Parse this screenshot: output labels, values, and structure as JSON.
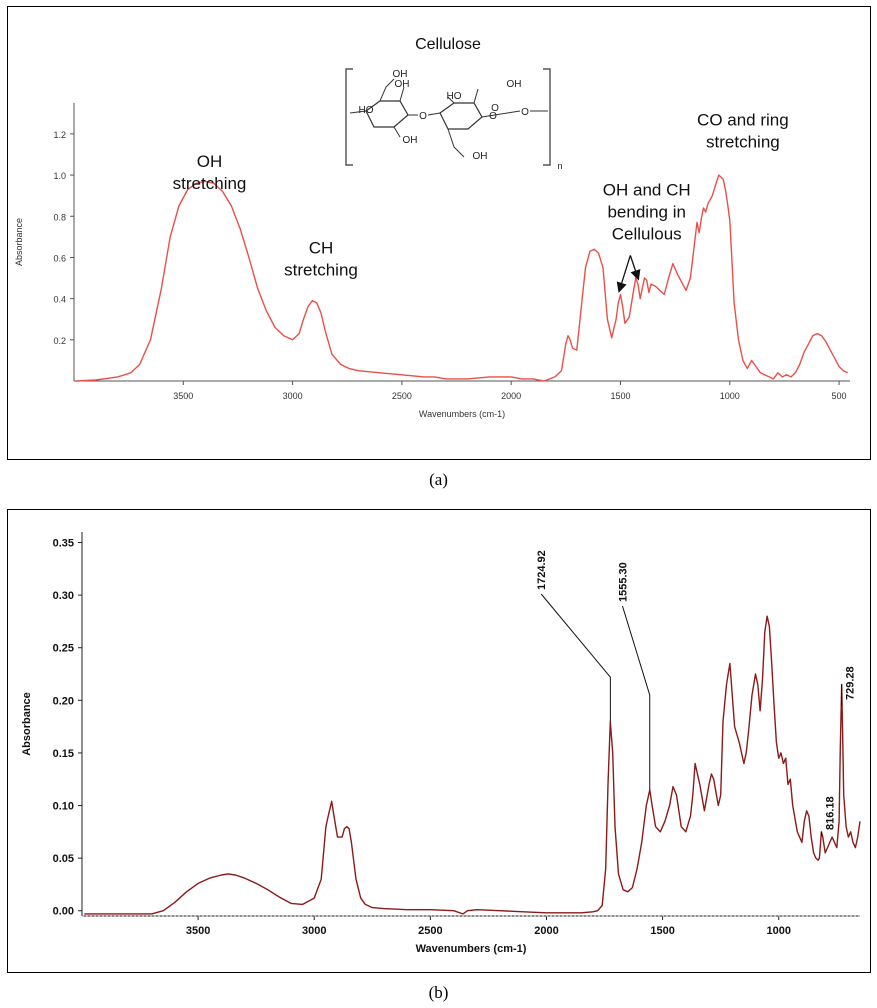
{
  "captions": {
    "a": "(a)",
    "b": "(b)"
  },
  "chart_data": [
    {
      "type": "line",
      "panel": "a",
      "xlabel": "Wavenumbers (cm-1)",
      "ylabel": "Absorbance",
      "xlim": [
        4000,
        450
      ],
      "ylim": [
        0,
        1.35
      ],
      "x_reversed": true,
      "xticks": [
        3500,
        3000,
        2500,
        2000,
        1500,
        1000,
        500
      ],
      "yticks": [
        0.2,
        0.4,
        0.6,
        0.8,
        1.0,
        1.2
      ],
      "ytick_labels": [
        "0.2",
        "0.4",
        "0.6",
        "0.8",
        "1.0",
        "1.2"
      ],
      "line_color": "#e8504a",
      "series": [
        {
          "x": [
            3990,
            3900,
            3800,
            3740,
            3700,
            3650,
            3600,
            3560,
            3520,
            3480,
            3440,
            3400,
            3360,
            3320,
            3280,
            3240,
            3200,
            3160,
            3120,
            3080,
            3040,
            3000,
            2970,
            2950,
            2930,
            2910,
            2890,
            2870,
            2850,
            2820,
            2780,
            2740,
            2700,
            2600,
            2500,
            2400,
            2350,
            2300,
            2200,
            2100,
            2000,
            1950,
            1900,
            1850,
            1800,
            1770,
            1750,
            1740,
            1730,
            1720,
            1700,
            1680,
            1660,
            1640,
            1620,
            1600,
            1580,
            1560,
            1540,
            1520,
            1510,
            1500,
            1490,
            1480,
            1460,
            1440,
            1430,
            1420,
            1410,
            1400,
            1390,
            1380,
            1370,
            1360,
            1340,
            1320,
            1300,
            1280,
            1260,
            1240,
            1220,
            1200,
            1180,
            1160,
            1150,
            1140,
            1130,
            1120,
            1110,
            1100,
            1080,
            1060,
            1050,
            1040,
            1030,
            1020,
            1010,
            1000,
            990,
            980,
            960,
            940,
            920,
            900,
            880,
            860,
            840,
            820,
            800,
            780,
            760,
            740,
            720,
            700,
            680,
            660,
            640,
            620,
            600,
            580,
            560,
            540,
            520,
            500,
            480,
            460
          ],
          "y": [
            0.0,
            0.005,
            0.02,
            0.04,
            0.08,
            0.2,
            0.45,
            0.7,
            0.85,
            0.93,
            0.96,
            0.97,
            0.96,
            0.92,
            0.85,
            0.74,
            0.6,
            0.45,
            0.34,
            0.26,
            0.22,
            0.2,
            0.23,
            0.3,
            0.36,
            0.39,
            0.38,
            0.33,
            0.24,
            0.13,
            0.08,
            0.06,
            0.05,
            0.04,
            0.03,
            0.02,
            0.02,
            0.01,
            0.01,
            0.02,
            0.02,
            0.01,
            0.01,
            0.0,
            0.02,
            0.05,
            0.18,
            0.22,
            0.2,
            0.16,
            0.15,
            0.35,
            0.55,
            0.63,
            0.64,
            0.62,
            0.55,
            0.3,
            0.21,
            0.3,
            0.38,
            0.42,
            0.36,
            0.28,
            0.31,
            0.44,
            0.5,
            0.47,
            0.4,
            0.45,
            0.5,
            0.49,
            0.43,
            0.47,
            0.46,
            0.44,
            0.42,
            0.5,
            0.57,
            0.52,
            0.48,
            0.44,
            0.5,
            0.68,
            0.77,
            0.72,
            0.79,
            0.84,
            0.82,
            0.86,
            0.9,
            0.97,
            1.0,
            0.99,
            0.98,
            0.93,
            0.86,
            0.78,
            0.58,
            0.38,
            0.2,
            0.1,
            0.06,
            0.1,
            0.07,
            0.04,
            0.03,
            0.02,
            0.01,
            0.04,
            0.02,
            0.03,
            0.02,
            0.04,
            0.08,
            0.14,
            0.18,
            0.22,
            0.23,
            0.22,
            0.19,
            0.15,
            0.11,
            0.07,
            0.05,
            0.04
          ]
        }
      ],
      "annotations": [
        {
          "lines": [
            "OH",
            "stretching"
          ],
          "x": 3380,
          "y": 1.04
        },
        {
          "lines": [
            "CH",
            "stretching"
          ],
          "x": 2870,
          "y": 0.62
        },
        {
          "lines": [
            "OH and CH",
            "bending in",
            "Cellulous"
          ],
          "x": 1380,
          "y": 0.9
        },
        {
          "lines": [
            "CO and ring",
            "stretching"
          ],
          "x": 940,
          "y": 1.24
        }
      ],
      "arrows": [
        {
          "from_x": 1455,
          "from_y": 0.61,
          "to_x": 1505,
          "to_y": 0.44
        },
        {
          "from_x": 1455,
          "from_y": 0.61,
          "to_x": 1420,
          "to_y": 0.5
        }
      ],
      "structure": {
        "title": "Cellulose",
        "labels": [
          "OH",
          "OH",
          "HO",
          "OH",
          "HO",
          "OH",
          "OH",
          "O",
          "O",
          "O",
          "O",
          "n"
        ]
      }
    },
    {
      "type": "line",
      "panel": "b",
      "xlabel": "Wavenumbers (cm-1)",
      "ylabel": "Absorbance",
      "xlim": [
        4000,
        650
      ],
      "ylim": [
        -0.005,
        0.36
      ],
      "x_reversed": true,
      "xticks": [
        3500,
        3000,
        2500,
        2000,
        1500,
        1000
      ],
      "yticks": [
        0.0,
        0.05,
        0.1,
        0.15,
        0.2,
        0.25,
        0.3,
        0.35
      ],
      "ytick_labels": [
        "0.00",
        "0.05",
        "0.10",
        "0.15",
        "0.20",
        "0.25",
        "0.30",
        "0.35"
      ],
      "line_color": "#8b1a1a",
      "series": [
        {
          "x": [
            3990,
            3900,
            3800,
            3700,
            3650,
            3600,
            3550,
            3500,
            3450,
            3400,
            3370,
            3340,
            3300,
            3250,
            3200,
            3150,
            3100,
            3050,
            3000,
            2970,
            2950,
            2940,
            2925,
            2915,
            2900,
            2880,
            2870,
            2860,
            2850,
            2840,
            2820,
            2800,
            2780,
            2750,
            2700,
            2600,
            2500,
            2400,
            2360,
            2340,
            2300,
            2200,
            2100,
            2000,
            1900,
            1850,
            1800,
            1780,
            1760,
            1745,
            1735,
            1725,
            1715,
            1705,
            1690,
            1670,
            1650,
            1630,
            1610,
            1590,
            1570,
            1555,
            1545,
            1530,
            1510,
            1490,
            1470,
            1455,
            1440,
            1420,
            1400,
            1380,
            1370,
            1360,
            1340,
            1320,
            1300,
            1290,
            1280,
            1260,
            1250,
            1240,
            1225,
            1210,
            1190,
            1170,
            1150,
            1140,
            1130,
            1115,
            1100,
            1090,
            1080,
            1070,
            1060,
            1050,
            1040,
            1030,
            1020,
            1010,
            1000,
            990,
            980,
            970,
            960,
            950,
            940,
            920,
            900,
            890,
            880,
            870,
            860,
            850,
            840,
            830,
            825,
            816,
            810,
            800,
            790,
            780,
            770,
            760,
            750,
            740,
            735,
            729,
            725,
            720,
            710,
            700,
            690,
            680,
            670,
            660,
            650
          ],
          "y": [
            -0.003,
            -0.003,
            -0.003,
            -0.003,
            0.0,
            0.008,
            0.018,
            0.026,
            0.031,
            0.034,
            0.035,
            0.034,
            0.031,
            0.026,
            0.02,
            0.013,
            0.007,
            0.006,
            0.012,
            0.03,
            0.08,
            0.09,
            0.104,
            0.09,
            0.07,
            0.07,
            0.078,
            0.08,
            0.078,
            0.065,
            0.03,
            0.012,
            0.006,
            0.003,
            0.002,
            0.001,
            0.001,
            0.0,
            -0.003,
            0.0,
            0.001,
            0.0,
            -0.001,
            -0.002,
            -0.002,
            -0.002,
            -0.001,
            0.0,
            0.005,
            0.04,
            0.12,
            0.18,
            0.15,
            0.08,
            0.035,
            0.02,
            0.018,
            0.022,
            0.04,
            0.065,
            0.1,
            0.115,
            0.1,
            0.08,
            0.075,
            0.085,
            0.1,
            0.118,
            0.11,
            0.08,
            0.075,
            0.09,
            0.11,
            0.14,
            0.12,
            0.095,
            0.12,
            0.13,
            0.125,
            0.1,
            0.11,
            0.18,
            0.215,
            0.235,
            0.175,
            0.16,
            0.14,
            0.15,
            0.17,
            0.205,
            0.225,
            0.215,
            0.19,
            0.22,
            0.265,
            0.28,
            0.27,
            0.235,
            0.195,
            0.16,
            0.145,
            0.15,
            0.14,
            0.145,
            0.12,
            0.125,
            0.1,
            0.075,
            0.065,
            0.085,
            0.095,
            0.09,
            0.07,
            0.055,
            0.05,
            0.048,
            0.05,
            0.075,
            0.07,
            0.055,
            0.06,
            0.065,
            0.07,
            0.065,
            0.06,
            0.085,
            0.155,
            0.215,
            0.17,
            0.11,
            0.08,
            0.07,
            0.075,
            0.065,
            0.06,
            0.07,
            0.085
          ]
        }
      ],
      "peak_labels": [
        {
          "text": "1724.92",
          "x": 1724.92,
          "y": 0.18,
          "label_x": 2040
        },
        {
          "text": "1555.30",
          "x": 1555.3,
          "y": 0.115,
          "label_x": 1690
        },
        {
          "text": "816.18",
          "x": 816.18,
          "y": 0.075,
          "label_x": 816.18
        },
        {
          "text": "729.28",
          "x": 729.28,
          "y": 0.215,
          "label_x": 729.28
        }
      ]
    }
  ]
}
